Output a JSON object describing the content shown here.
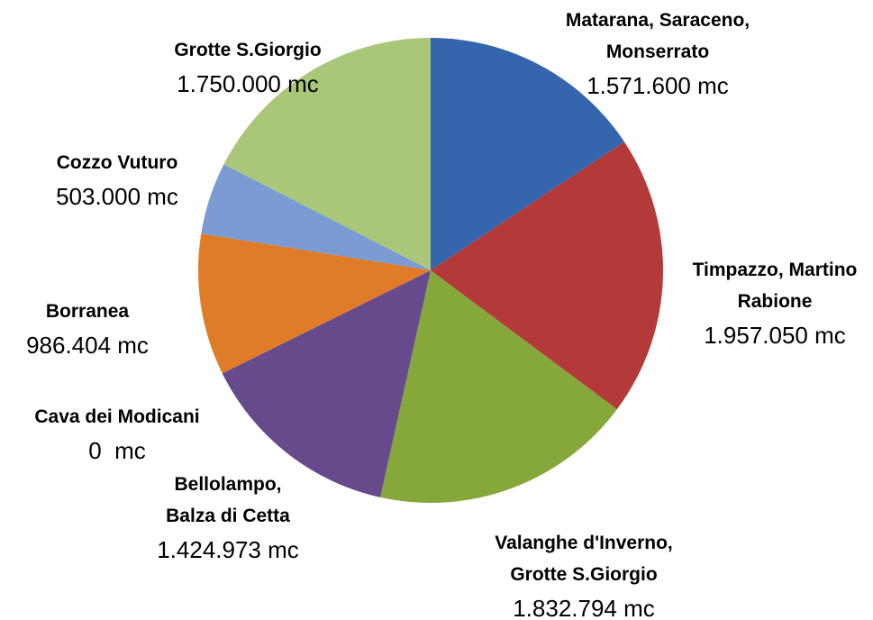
{
  "chart_data": {
    "type": "pie",
    "categories": [
      "Matarana, Saraceno, Monserrato",
      "Timpazzo, Martino Rabione",
      "Valanghe d'Inverno, Grotte S.Giorgio",
      "Bellolampo, Balza di Cetta",
      "Cava dei Modicani",
      "Borranea",
      "Cozzo Vuturo",
      "Grotte S.Giorgio"
    ],
    "values": [
      1571600,
      1957050,
      1832794,
      1424973,
      0,
      986404,
      503000,
      1750000
    ],
    "value_labels": [
      "1.571.600 mc",
      "1.957.050 mc",
      "1.832.794 mc",
      "1.424.973 mc",
      "0  mc",
      "986.404 mc",
      "503.000 mc",
      "1.750.000 mc"
    ],
    "colors": [
      "#3566ad",
      "#b43a3a",
      "#86a83a",
      "#664a8c",
      "#4bacc6",
      "#e07b27",
      "#7c9bd3",
      "#a9c679"
    ]
  }
}
